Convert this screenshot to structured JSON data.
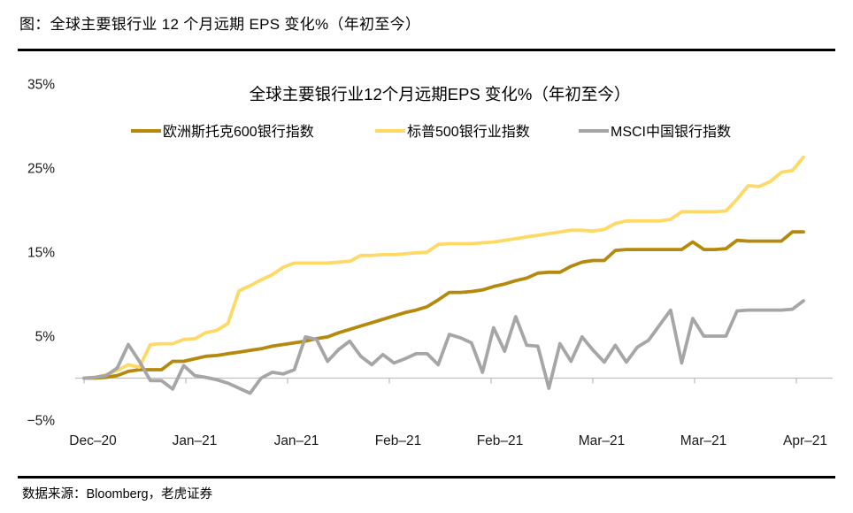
{
  "page": {
    "title": "图：全球主要银行业 12 个月远期 EPS 变化%（年初至今）",
    "source_note": "数据来源：Bloomberg，老虎证券"
  },
  "chart_data": {
    "type": "line",
    "title": "全球主要银行业12个月远期EPS 变化%（年初至今）",
    "xlabel": "",
    "ylabel": "",
    "ylim": [
      -5,
      35
    ],
    "grid": false,
    "legend_position": "top",
    "axis_color": "#BFBFBF",
    "ytick_values": [
      35,
      25,
      15,
      5,
      -5
    ],
    "ytick_labels": [
      "35%",
      "25%",
      "15%",
      "5%",
      "−5%"
    ],
    "xtick_labels": [
      "Dec–20",
      "Jan–21",
      "Jan–21",
      "Feb–21",
      "Feb–21",
      "Mar–21",
      "Mar–21",
      "Apr–21"
    ],
    "unit": "percent",
    "series": [
      {
        "name": "欧洲斯托克600银行指数",
        "color": "#B5890B",
        "values": [
          0,
          0,
          0.1,
          0.3,
          0.8,
          1.0,
          1.0,
          1.0,
          2.0,
          2.0,
          2.3,
          2.6,
          2.7,
          2.9,
          3.1,
          3.3,
          3.5,
          3.8,
          4.0,
          4.2,
          4.4,
          4.7,
          4.9,
          5.4,
          5.8,
          6.2,
          6.6,
          7.0,
          7.4,
          7.8,
          8.1,
          8.5,
          9.3,
          10.2,
          10.2,
          10.3,
          10.5,
          10.9,
          11.2,
          11.6,
          11.9,
          12.5,
          12.6,
          12.6,
          13.3,
          13.8,
          14.0,
          14.0,
          15.2,
          15.3,
          15.3,
          15.3,
          15.3,
          15.3,
          15.3,
          16.2,
          15.3,
          15.3,
          15.4,
          16.4,
          16.3,
          16.3,
          16.3,
          16.3,
          17.4,
          17.4
        ]
      },
      {
        "name": "标普500银行业指数",
        "color": "#FFD966",
        "values": [
          0,
          0.1,
          0.4,
          0.9,
          1.6,
          1.3,
          4.0,
          4.1,
          4.1,
          4.6,
          4.7,
          5.4,
          5.7,
          6.5,
          10.4,
          11.0,
          11.7,
          12.3,
          13.2,
          13.7,
          13.7,
          13.7,
          13.7,
          13.8,
          13.9,
          14.6,
          14.6,
          14.7,
          14.7,
          14.8,
          14.9,
          15.0,
          15.9,
          16.0,
          16.0,
          16.0,
          16.1,
          16.2,
          16.4,
          16.6,
          16.8,
          17.0,
          17.2,
          17.4,
          17.6,
          17.6,
          17.5,
          17.7,
          18.4,
          18.7,
          18.7,
          18.7,
          18.7,
          18.9,
          19.8,
          19.8,
          19.8,
          19.8,
          19.9,
          21.3,
          22.9,
          22.8,
          23.4,
          24.5,
          24.7,
          26.3
        ]
      },
      {
        "name": "MSCI中国银行指数",
        "color": "#A6A6A6",
        "values": [
          0,
          0.1,
          0.3,
          1.2,
          4.0,
          2.0,
          -0.3,
          -0.3,
          -1.3,
          1.5,
          0.3,
          0.1,
          -0.2,
          -0.6,
          -1.2,
          -1.8,
          0.0,
          0.7,
          0.5,
          1.0,
          4.9,
          4.6,
          2.0,
          3.4,
          4.4,
          2.6,
          1.6,
          2.8,
          1.8,
          2.3,
          2.9,
          2.9,
          1.6,
          5.2,
          4.8,
          4.2,
          0.7,
          6.0,
          3.2,
          7.3,
          3.9,
          3.8,
          -1.2,
          4.1,
          2.0,
          4.9,
          3.3,
          1.9,
          3.9,
          1.9,
          3.7,
          4.5,
          6.3,
          8.1,
          1.8,
          7.1,
          5.0,
          5.0,
          5.0,
          8.0,
          8.1,
          8.1,
          8.1,
          8.1,
          8.2,
          9.2
        ]
      }
    ]
  }
}
